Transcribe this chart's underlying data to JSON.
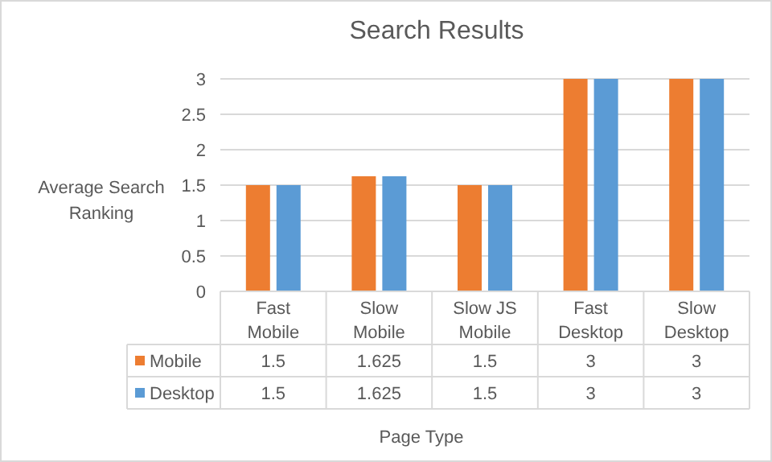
{
  "chart_data": {
    "type": "bar",
    "title": "Search Results",
    "xlabel": "Page Type",
    "ylabel": "Average Search Ranking",
    "categories": [
      "Fast Mobile",
      "Slow Mobile",
      "Slow JS Mobile",
      "Fast Desktop",
      "Slow Desktop"
    ],
    "series": [
      {
        "name": "Mobile",
        "color": "#ed7d31",
        "values": [
          1.5,
          1.625,
          1.5,
          3,
          3
        ]
      },
      {
        "name": "Desktop",
        "color": "#5b9bd5",
        "values": [
          1.5,
          1.625,
          1.5,
          3,
          3
        ]
      }
    ],
    "ylim": [
      0,
      3
    ],
    "yticks": [
      0,
      0.5,
      1,
      1.5,
      2,
      2.5,
      3
    ],
    "grid": "y",
    "legend": "bottom",
    "data_labels": true
  }
}
